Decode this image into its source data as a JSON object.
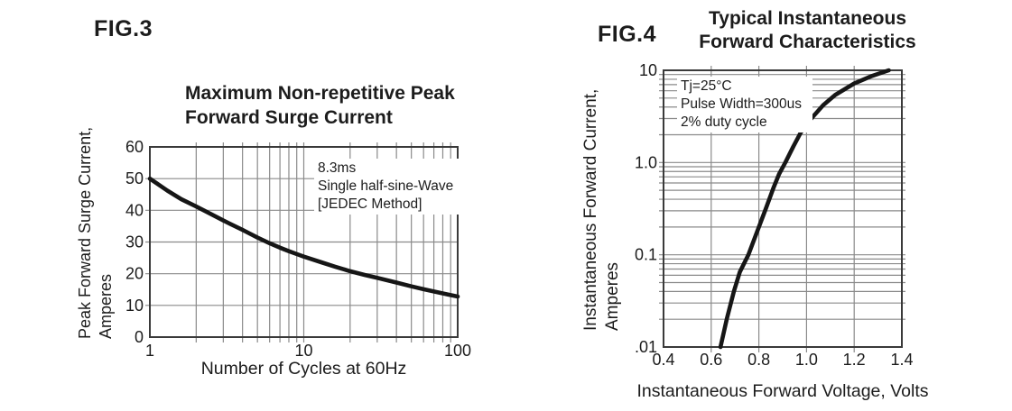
{
  "page": {
    "background": "#ffffff",
    "text_color": "#1c1c1c"
  },
  "chart_data": [
    {
      "id": "fig3",
      "figure_label": "FIG.3",
      "type": "line",
      "title": "Maximum Non-repetitive Peak Forward Surge Current",
      "title_lines": [
        "Maximum Non-repetitive Peak",
        "Forward Surge Current"
      ],
      "xlabel": "Number of Cycles at 60Hz",
      "ylabel": "Peak Forward Surge Current, Amperes",
      "ylabel_lines": [
        "Peak Forward Surge Current,",
        "Amperes"
      ],
      "x_scale": "log",
      "y_scale": "linear",
      "xlim": [
        1,
        100
      ],
      "ylim": [
        0,
        60
      ],
      "x_ticks": [
        1,
        10,
        100
      ],
      "x_tick_labels": [
        "1",
        "10",
        "100"
      ],
      "y_ticks": [
        0,
        10,
        20,
        30,
        40,
        50,
        60
      ],
      "y_tick_labels": [
        "0",
        "10",
        "20",
        "30",
        "40",
        "50",
        "60"
      ],
      "grid": true,
      "legend": false,
      "annotation_lines": [
        "8.3ms",
        "Single half-sine-Wave",
        "[JEDEC Method]"
      ],
      "line_color": "#161616",
      "grid_color": "#8a8a8a",
      "border_color": "#3a3a3a",
      "series": [
        {
          "name": "peak-forward-surge-current",
          "points": [
            [
              1,
              50
            ],
            [
              1.3,
              46.2
            ],
            [
              1.6,
              43.5
            ],
            [
              2,
              41.2
            ],
            [
              2.5,
              38.8
            ],
            [
              3,
              36.8
            ],
            [
              4,
              33.8
            ],
            [
              5,
              31.4
            ],
            [
              6,
              29.6
            ],
            [
              7,
              28.2
            ],
            [
              8,
              27.1
            ],
            [
              9,
              26.2
            ],
            [
              10,
              25.4
            ],
            [
              13,
              23.6
            ],
            [
              16,
              22.2
            ],
            [
              20,
              20.8
            ],
            [
              25,
              19.6
            ],
            [
              30,
              18.7
            ],
            [
              40,
              17.2
            ],
            [
              50,
              16
            ],
            [
              60,
              15.1
            ],
            [
              70,
              14.4
            ],
            [
              85,
              13.5
            ],
            [
              100,
              12.8
            ]
          ]
        }
      ]
    },
    {
      "id": "fig4",
      "figure_label": "FIG.4",
      "type": "line",
      "title": "Typical Instantaneous Forward Characteristics",
      "title_lines": [
        "Typical Instantaneous",
        "Forward Characteristics"
      ],
      "xlabel": "Instantaneous Forward Voltage, Volts",
      "ylabel": "Instantaneous Forward Current, Amperes",
      "ylabel_lines": [
        "Instantaneous Forward Current,",
        "Amperes"
      ],
      "x_scale": "linear",
      "y_scale": "log",
      "xlim": [
        0.4,
        1.4
      ],
      "ylim": [
        0.01,
        10
      ],
      "x_ticks": [
        0.4,
        0.6,
        0.8,
        1.0,
        1.2,
        1.4
      ],
      "x_tick_labels": [
        "0.4",
        "0.6",
        "0.8",
        "1.0",
        "1.2",
        "1.4"
      ],
      "y_ticks": [
        0.01,
        0.1,
        1,
        10
      ],
      "y_tick_labels": [
        ".01",
        "0.1",
        "1.0",
        "10"
      ],
      "grid": true,
      "legend": false,
      "annotation_lines": [
        "Tj=25°C",
        "Pulse Width=300us",
        "2% duty cycle"
      ],
      "line_color": "#161616",
      "grid_color": "#8a8a8a",
      "border_color": "#3a3a3a",
      "series": [
        {
          "name": "instantaneous-forward-current",
          "points": [
            [
              0.639,
              0.01
            ],
            [
              0.665,
              0.02
            ],
            [
              0.695,
              0.04
            ],
            [
              0.72,
              0.065
            ],
            [
              0.756,
              0.1
            ],
            [
              0.8,
              0.2
            ],
            [
              0.83,
              0.32
            ],
            [
              0.86,
              0.52
            ],
            [
              0.885,
              0.75
            ],
            [
              0.911,
              1.0
            ],
            [
              0.945,
              1.5
            ],
            [
              0.975,
              2.1
            ],
            [
              1.02,
              3.0
            ],
            [
              1.07,
              4.2
            ],
            [
              1.12,
              5.4
            ],
            [
              1.2,
              7.2
            ],
            [
              1.27,
              8.6
            ],
            [
              1.345,
              10
            ]
          ]
        }
      ]
    }
  ]
}
